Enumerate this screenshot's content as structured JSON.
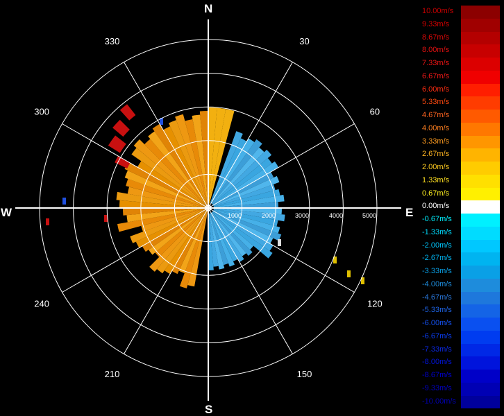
{
  "compass": {
    "north": "N",
    "east": "E",
    "south": "S",
    "west": "W"
  },
  "azimuth_labels": [
    {
      "deg": 30,
      "text": "30"
    },
    {
      "deg": 60,
      "text": "60"
    },
    {
      "deg": 120,
      "text": "120"
    },
    {
      "deg": 150,
      "text": "150"
    },
    {
      "deg": 210,
      "text": "210"
    },
    {
      "deg": 240,
      "text": "240"
    },
    {
      "deg": 300,
      "text": "300"
    },
    {
      "deg": 330,
      "text": "330"
    }
  ],
  "range_labels": [
    "1000",
    "2000",
    "3000",
    "4000",
    "5000"
  ],
  "legend": [
    {
      "label": "10.00m/s",
      "color": "#8c0000",
      "text_color": "#c80000"
    },
    {
      "label": "9.33m/s",
      "color": "#a00000",
      "text_color": "#d40000"
    },
    {
      "label": "8.67m/s",
      "color": "#b40000",
      "text_color": "#dc0808"
    },
    {
      "label": "8.00m/s",
      "color": "#c80000",
      "text_color": "#e41010"
    },
    {
      "label": "7.33m/s",
      "color": "#dc0000",
      "text_color": "#ec1414"
    },
    {
      "label": "6.67m/s",
      "color": "#f00000",
      "text_color": "#f01818"
    },
    {
      "label": "6.00m/s",
      "color": "#ff1e00",
      "text_color": "#ff2c10"
    },
    {
      "label": "5.33m/s",
      "color": "#ff3c00",
      "text_color": "#ff4a10"
    },
    {
      "label": "4.67m/s",
      "color": "#ff5a00",
      "text_color": "#ff6420"
    },
    {
      "label": "4.00m/s",
      "color": "#ff7800",
      "text_color": "#ff8020"
    },
    {
      "label": "3.33m/s",
      "color": "#ff9600",
      "text_color": "#ff9c20"
    },
    {
      "label": "2.67m/s",
      "color": "#ffb400",
      "text_color": "#ffb420"
    },
    {
      "label": "2.00m/s",
      "color": "#ffcc00",
      "text_color": "#ffcc20"
    },
    {
      "label": "1.33m/s",
      "color": "#ffe000",
      "text_color": "#ffe020"
    },
    {
      "label": "0.67m/s",
      "color": "#fff000",
      "text_color": "#fff020"
    },
    {
      "label": "0.00m/s",
      "color": "#ffffff",
      "text_color": "#ffffff"
    },
    {
      "label": "-0.67m/s",
      "color": "#00f0ff",
      "text_color": "#00f0ff"
    },
    {
      "label": "-1.33m/s",
      "color": "#00dcff",
      "text_color": "#00dcff"
    },
    {
      "label": "-2.00m/s",
      "color": "#00c8ff",
      "text_color": "#00c8ff"
    },
    {
      "label": "-2.67m/s",
      "color": "#00b4f0",
      "text_color": "#00b4f0"
    },
    {
      "label": "-3.33m/s",
      "color": "#0aa0e6",
      "text_color": "#0aa0e6"
    },
    {
      "label": "-4.00m/s",
      "color": "#1e8cdc",
      "text_color": "#1e8cdc"
    },
    {
      "label": "-4.67m/s",
      "color": "#1e78dc",
      "text_color": "#2a78dc"
    },
    {
      "label": "-5.33m/s",
      "color": "#1464e6",
      "text_color": "#1e64e6"
    },
    {
      "label": "-6.00m/s",
      "color": "#0a50f0",
      "text_color": "#1450f0"
    },
    {
      "label": "-6.67m/s",
      "color": "#003cf0",
      "text_color": "#0a3cf0"
    },
    {
      "label": "-7.33m/s",
      "color": "#0028e6",
      "text_color": "#0a28e6"
    },
    {
      "label": "-8.00m/s",
      "color": "#0014dc",
      "text_color": "#0014dc"
    },
    {
      "label": "-8.67m/s",
      "color": "#0000c8",
      "text_color": "#0000d0"
    },
    {
      "label": "-9.33m/s",
      "color": "#0000b4",
      "text_color": "#0000c0"
    },
    {
      "label": "-10.00m/s",
      "color": "#00009c",
      "text_color": "#0000b4"
    }
  ]
}
